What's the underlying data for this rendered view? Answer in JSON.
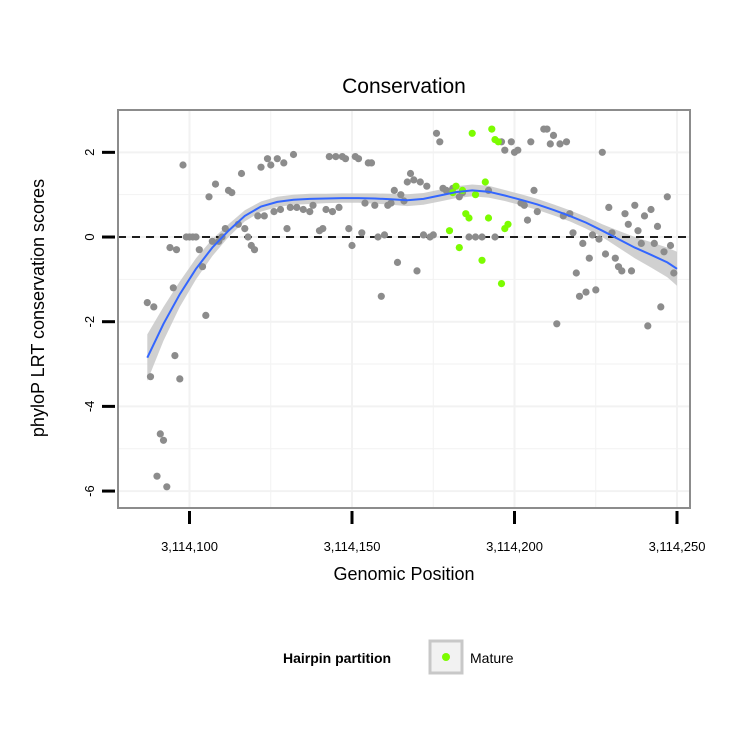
{
  "chart_data": {
    "type": "scatter",
    "title": "Conservation",
    "xlabel": "Genomic Position",
    "ylabel": "phyloP LRT conservation scores",
    "xlim": [
      3114078,
      3114254
    ],
    "ylim": [
      -6.4,
      3.0
    ],
    "xticks": [
      {
        "value": 3114100,
        "label": "3,114,100"
      },
      {
        "value": 3114150,
        "label": "3,114,150"
      },
      {
        "value": 3114200,
        "label": "3,114,200"
      },
      {
        "value": 3114250,
        "label": "3,114,250"
      }
    ],
    "yticks": [
      {
        "value": -6,
        "label": "-6"
      },
      {
        "value": -4,
        "label": "-4"
      },
      {
        "value": -2,
        "label": "-2"
      },
      {
        "value": 0,
        "label": "0"
      },
      {
        "value": 2,
        "label": "2"
      }
    ],
    "grid": true,
    "reference_line": {
      "y": 0,
      "style": "dashed",
      "color": "#000000"
    },
    "colors": {
      "background": "#ffffff",
      "grid": "#f2f2f2",
      "frame": "#8c8c8c",
      "points": "#8c8c8c",
      "mature": "#7cfc00",
      "smooth_line": "#3366ff",
      "ribbon": "#c8c8c8"
    },
    "series": [
      {
        "name": "",
        "color": "#8c8c8c",
        "points": [
          [
            3114087,
            -1.55
          ],
          [
            3114088,
            -3.3
          ],
          [
            3114089,
            -1.65
          ],
          [
            3114090,
            -5.65
          ],
          [
            3114091,
            -4.65
          ],
          [
            3114092,
            -4.8
          ],
          [
            3114093,
            -5.9
          ],
          [
            3114094,
            -0.25
          ],
          [
            3114095,
            -1.2
          ],
          [
            3114095.5,
            -2.8
          ],
          [
            3114096,
            -0.3
          ],
          [
            3114097,
            -3.35
          ],
          [
            3114098,
            1.7
          ],
          [
            3114099,
            0.0
          ],
          [
            3114100,
            0.0
          ],
          [
            3114101,
            0.0
          ],
          [
            3114102,
            0.0
          ],
          [
            3114103,
            -0.3
          ],
          [
            3114104,
            -0.7
          ],
          [
            3114105,
            -1.85
          ],
          [
            3114106,
            0.95
          ],
          [
            3114107,
            -0.1
          ],
          [
            3114108,
            1.25
          ],
          [
            3114109,
            -0.1
          ],
          [
            3114110,
            0.0
          ],
          [
            3114111,
            0.2
          ],
          [
            3114112,
            1.1
          ],
          [
            3114113,
            1.05
          ],
          [
            3114115,
            0.3
          ],
          [
            3114116,
            1.5
          ],
          [
            3114117,
            0.2
          ],
          [
            3114118,
            0.0
          ],
          [
            3114119,
            -0.2
          ],
          [
            3114120,
            -0.3
          ],
          [
            3114121,
            0.5
          ],
          [
            3114122,
            1.65
          ],
          [
            3114123,
            0.5
          ],
          [
            3114124,
            1.85
          ],
          [
            3114125,
            1.7
          ],
          [
            3114126,
            0.6
          ],
          [
            3114127,
            1.85
          ],
          [
            3114128,
            0.65
          ],
          [
            3114129,
            1.75
          ],
          [
            3114130,
            0.2
          ],
          [
            3114131,
            0.7
          ],
          [
            3114132,
            1.95
          ],
          [
            3114133,
            0.7
          ],
          [
            3114135,
            0.65
          ],
          [
            3114137,
            0.6
          ],
          [
            3114138,
            0.75
          ],
          [
            3114140,
            0.15
          ],
          [
            3114141,
            0.2
          ],
          [
            3114142,
            0.65
          ],
          [
            3114143,
            1.9
          ],
          [
            3114144,
            0.6
          ],
          [
            3114145,
            1.9
          ],
          [
            3114146,
            0.7
          ],
          [
            3114147,
            1.9
          ],
          [
            3114148,
            1.85
          ],
          [
            3114149,
            0.2
          ],
          [
            3114150,
            -0.2
          ],
          [
            3114151,
            1.9
          ],
          [
            3114152,
            1.85
          ],
          [
            3114153,
            0.1
          ],
          [
            3114154,
            0.8
          ],
          [
            3114155,
            1.75
          ],
          [
            3114156,
            1.75
          ],
          [
            3114157,
            0.75
          ],
          [
            3114158,
            0.0
          ],
          [
            3114159,
            -1.4
          ],
          [
            3114160,
            0.05
          ],
          [
            3114161,
            0.75
          ],
          [
            3114162,
            0.8
          ],
          [
            3114163,
            1.1
          ],
          [
            3114164,
            -0.6
          ],
          [
            3114165,
            1.0
          ],
          [
            3114166,
            0.85
          ],
          [
            3114167,
            1.3
          ],
          [
            3114168,
            1.5
          ],
          [
            3114169,
            1.35
          ],
          [
            3114170,
            -0.8
          ],
          [
            3114171,
            1.3
          ],
          [
            3114172,
            0.05
          ],
          [
            3114173,
            1.2
          ],
          [
            3114174,
            0.0
          ],
          [
            3114175,
            0.05
          ],
          [
            3114176,
            2.45
          ],
          [
            3114177,
            2.25
          ],
          [
            3114178,
            1.15
          ],
          [
            3114179,
            1.1
          ],
          [
            3114181,
            1.15
          ],
          [
            3114183,
            0.95
          ],
          [
            3114184,
            1.05
          ],
          [
            3114186,
            0.0
          ],
          [
            3114188,
            0.0
          ],
          [
            3114190,
            0.0
          ],
          [
            3114192,
            1.1
          ],
          [
            3114194,
            0.0
          ],
          [
            3114196,
            2.25
          ],
          [
            3114197,
            2.05
          ],
          [
            3114199,
            2.25
          ],
          [
            3114200,
            2.0
          ],
          [
            3114201,
            2.05
          ],
          [
            3114202,
            0.8
          ],
          [
            3114203,
            0.75
          ],
          [
            3114204,
            0.4
          ],
          [
            3114205,
            2.25
          ],
          [
            3114206,
            1.1
          ],
          [
            3114207,
            0.6
          ],
          [
            3114209,
            2.55
          ],
          [
            3114210,
            2.55
          ],
          [
            3114211,
            2.2
          ],
          [
            3114212,
            2.4
          ],
          [
            3114213,
            -2.05
          ],
          [
            3114214,
            2.2
          ],
          [
            3114215,
            0.5
          ],
          [
            3114216,
            2.25
          ],
          [
            3114217,
            0.55
          ],
          [
            3114218,
            0.1
          ],
          [
            3114219,
            -0.85
          ],
          [
            3114220,
            -1.4
          ],
          [
            3114221,
            -0.15
          ],
          [
            3114222,
            -1.3
          ],
          [
            3114223,
            -0.5
          ],
          [
            3114224,
            0.05
          ],
          [
            3114225,
            -1.25
          ],
          [
            3114226,
            -0.05
          ],
          [
            3114227,
            2.0
          ],
          [
            3114228,
            -0.4
          ],
          [
            3114229,
            0.7
          ],
          [
            3114230,
            0.1
          ],
          [
            3114231,
            -0.5
          ],
          [
            3114232,
            -0.7
          ],
          [
            3114233,
            -0.8
          ],
          [
            3114234,
            0.55
          ],
          [
            3114235,
            0.3
          ],
          [
            3114236,
            -0.8
          ],
          [
            3114237,
            0.75
          ],
          [
            3114238,
            0.15
          ],
          [
            3114239,
            -0.15
          ],
          [
            3114240,
            0.5
          ],
          [
            3114241,
            -2.1
          ],
          [
            3114242,
            0.65
          ],
          [
            3114243,
            -0.15
          ],
          [
            3114244,
            0.25
          ],
          [
            3114245,
            -1.65
          ],
          [
            3114246,
            -0.35
          ],
          [
            3114247,
            0.95
          ],
          [
            3114248,
            -0.2
          ],
          [
            3114249,
            -0.85
          ]
        ]
      },
      {
        "name": "Mature",
        "color": "#7cfc00",
        "points": [
          [
            3114180,
            0.15
          ],
          [
            3114181,
            1.05
          ],
          [
            3114182,
            1.2
          ],
          [
            3114183,
            -0.25
          ],
          [
            3114184,
            1.1
          ],
          [
            3114185,
            0.55
          ],
          [
            3114186,
            0.45
          ],
          [
            3114187,
            2.45
          ],
          [
            3114188,
            1.0
          ],
          [
            3114190,
            -0.55
          ],
          [
            3114191,
            1.3
          ],
          [
            3114192,
            0.45
          ],
          [
            3114193,
            2.55
          ],
          [
            3114194,
            2.3
          ],
          [
            3114195,
            2.25
          ],
          [
            3114196,
            -1.1
          ],
          [
            3114197,
            0.2
          ],
          [
            3114198,
            0.3
          ]
        ]
      }
    ],
    "smooth": {
      "color": "#3366ff",
      "x": [
        3114087,
        3114092,
        3114097,
        3114102,
        3114107,
        3114112,
        3114117,
        3114122,
        3114127,
        3114132,
        3114137,
        3114142,
        3114147,
        3114152,
        3114157,
        3114162,
        3114167,
        3114172,
        3114177,
        3114182,
        3114187,
        3114192,
        3114197,
        3114202,
        3114207,
        3114212,
        3114217,
        3114222,
        3114227,
        3114232,
        3114237,
        3114242,
        3114247,
        3114250
      ],
      "y": [
        -2.85,
        -2.05,
        -1.35,
        -0.75,
        -0.25,
        0.15,
        0.5,
        0.72,
        0.83,
        0.88,
        0.9,
        0.91,
        0.92,
        0.92,
        0.91,
        0.89,
        0.87,
        0.9,
        0.98,
        1.06,
        1.1,
        1.07,
        0.98,
        0.88,
        0.77,
        0.64,
        0.5,
        0.34,
        0.15,
        -0.05,
        -0.25,
        -0.42,
        -0.6,
        -0.75
      ],
      "lower": [
        -3.4,
        -2.45,
        -1.65,
        -1.0,
        -0.45,
        0.0,
        0.37,
        0.6,
        0.71,
        0.76,
        0.78,
        0.8,
        0.81,
        0.81,
        0.79,
        0.76,
        0.73,
        0.76,
        0.84,
        0.92,
        0.96,
        0.93,
        0.85,
        0.75,
        0.64,
        0.51,
        0.37,
        0.2,
        0.0,
        -0.25,
        -0.5,
        -0.72,
        -0.95,
        -1.15
      ],
      "upper": [
        -2.3,
        -1.65,
        -1.05,
        -0.5,
        -0.05,
        0.3,
        0.63,
        0.84,
        0.95,
        1.0,
        1.02,
        1.02,
        1.03,
        1.03,
        1.03,
        1.02,
        1.01,
        1.04,
        1.12,
        1.2,
        1.24,
        1.21,
        1.11,
        1.01,
        0.9,
        0.77,
        0.63,
        0.48,
        0.3,
        0.15,
        0.0,
        -0.12,
        -0.25,
        -0.35
      ]
    },
    "legend": {
      "title": "Hairpin partition",
      "items": [
        {
          "label": "Mature",
          "color": "#7cfc00"
        }
      ],
      "placement": "bottom"
    }
  }
}
